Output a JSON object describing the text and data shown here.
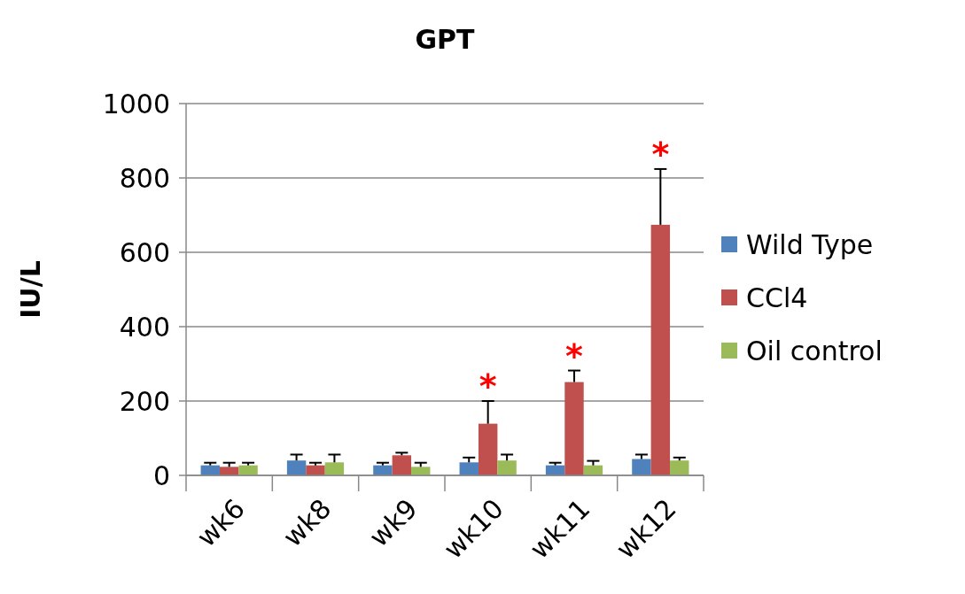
{
  "chart_data": {
    "type": "bar",
    "title": "GPT",
    "ylabel": "IU/L",
    "categories": [
      "wk6",
      "wk8",
      "wk9",
      "wk10",
      "wk11",
      "wk12"
    ],
    "series": [
      {
        "name": "Wild Type",
        "color": "#4f81bd",
        "values": [
          27,
          40,
          27,
          35,
          27,
          44
        ],
        "errors": [
          7,
          16,
          7,
          13,
          7,
          12
        ]
      },
      {
        "name": "CCl4",
        "color": "#c0504d",
        "values": [
          23,
          27,
          54,
          139,
          251,
          674
        ],
        "errors": [
          11,
          7,
          7,
          61,
          31,
          150
        ],
        "value_labels": [
          null,
          null,
          null,
          "*",
          "*",
          "*"
        ]
      },
      {
        "name": "Oil control",
        "color": "#9bbb59",
        "values": [
          27,
          35,
          23,
          40,
          27,
          40
        ],
        "errors": [
          7,
          21,
          11,
          16,
          12,
          8
        ]
      }
    ],
    "ylim": [
      0,
      1000
    ],
    "yticks": [
      0,
      200,
      400,
      600,
      800,
      1000
    ],
    "grid": "y",
    "legend": "right"
  }
}
